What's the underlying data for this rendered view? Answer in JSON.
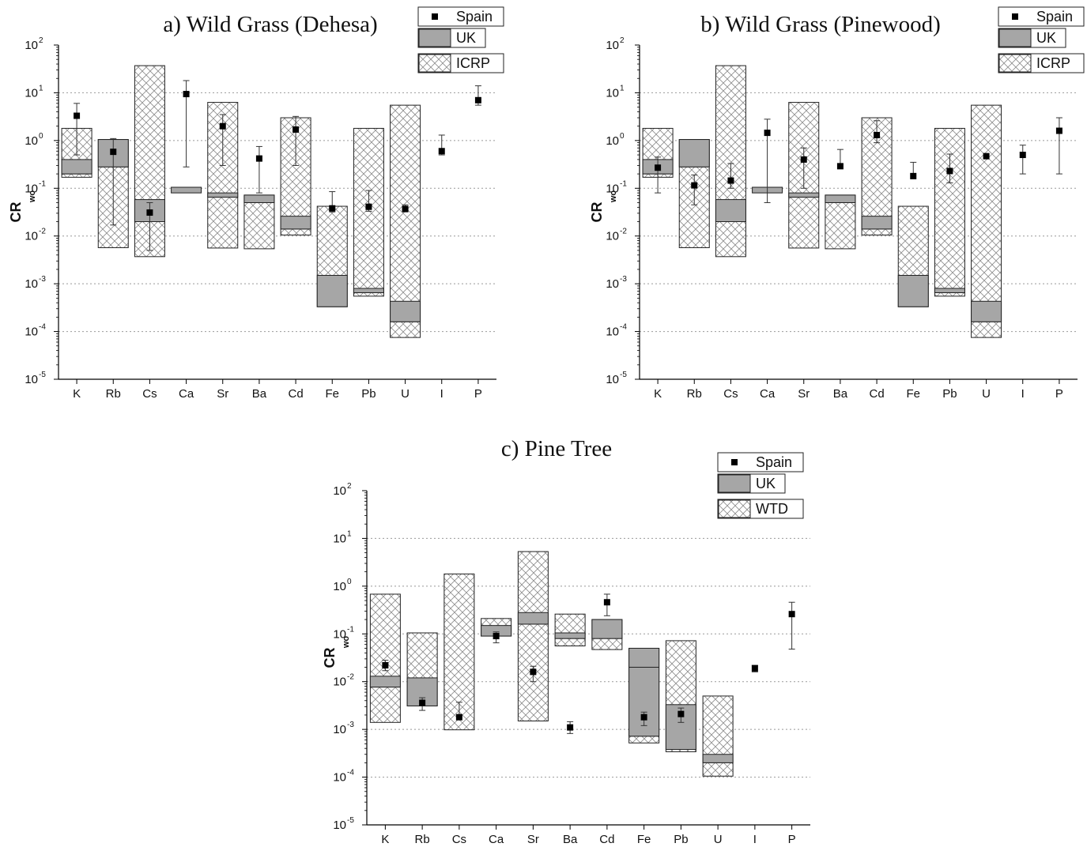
{
  "colors": {
    "uk_fill": "#a6a6a6",
    "hatch_fill": "#ffffff",
    "marker": "#000000",
    "grid": "#999999"
  },
  "chart_data": [
    {
      "type": "bar",
      "title": "a) Wild Grass (Dehesa)",
      "ylabel": "CR",
      "ylabel_sub": "wo",
      "yscale": "log",
      "ylim_exp": [
        -5,
        2
      ],
      "ytick_base": "10",
      "ytick_exponents": [
        "-5",
        "-4",
        "-3",
        "-2",
        "-1",
        "0",
        "1",
        "2"
      ],
      "grid": "horizontal dotted",
      "legend_position": "top-right",
      "categories": [
        "K",
        "Rb",
        "Cs",
        "Ca",
        "Sr",
        "Ba",
        "Cd",
        "Fe",
        "Pb",
        "U",
        "I",
        "P"
      ],
      "series": [
        {
          "name": "ICRP",
          "kind": "range_box",
          "ranges": [
            [
              0.17,
              1.8
            ],
            [
              0.0057,
              1.05
            ],
            [
              0.0037,
              37
            ],
            null,
            [
              0.0056,
              6.3
            ],
            [
              0.0054,
              0.072
            ],
            [
              0.0105,
              3.0
            ],
            [
              0.00033,
              0.042
            ],
            [
              0.00055,
              1.8
            ],
            [
              7.5e-05,
              5.5
            ],
            null,
            null
          ],
          "lines": [
            0.2,
            0.28,
            0.02,
            null,
            0.065,
            0.05,
            0.014,
            null,
            0.00065,
            0.00016,
            null,
            null
          ]
        },
        {
          "name": "UK",
          "kind": "range_box",
          "ranges": [
            [
              0.2,
              0.4
            ],
            [
              0.28,
              1.05
            ],
            [
              0.02,
              0.058
            ],
            [
              0.08,
              0.105
            ],
            [
              0.065,
              0.08
            ],
            [
              0.05,
              0.072
            ],
            [
              0.014,
              0.026
            ],
            [
              0.00033,
              0.0015
            ],
            [
              0.00065,
              0.0008
            ],
            [
              0.00016,
              0.00043
            ],
            null,
            null
          ]
        },
        {
          "name": "Spain",
          "kind": "point_error",
          "values": [
            3.3,
            0.58,
            0.031,
            9.4,
            2.0,
            0.42,
            1.7,
            0.038,
            0.041,
            0.037,
            0.6,
            7.0
          ],
          "err_low": [
            0.5,
            0.017,
            0.005,
            0.28,
            0.3,
            0.08,
            0.3,
            0.032,
            0.033,
            0.032,
            0.5,
            5.5
          ],
          "err_high": [
            6.0,
            1.1,
            0.05,
            18,
            3.5,
            0.75,
            3.2,
            0.085,
            0.09,
            0.045,
            1.3,
            14
          ]
        }
      ]
    },
    {
      "type": "bar",
      "title": "b) Wild Grass (Pinewood)",
      "ylabel": "CR",
      "ylabel_sub": "wo",
      "yscale": "log",
      "ylim_exp": [
        -5,
        2
      ],
      "ytick_base": "10",
      "ytick_exponents": [
        "-5",
        "-4",
        "-3",
        "-2",
        "-1",
        "0",
        "1",
        "2"
      ],
      "grid": "horizontal dotted",
      "legend_position": "top-right",
      "categories": [
        "K",
        "Rb",
        "Cs",
        "Ca",
        "Sr",
        "Ba",
        "Cd",
        "Fe",
        "Pb",
        "U",
        "I",
        "P"
      ],
      "series": [
        {
          "name": "ICRP",
          "kind": "range_box",
          "ranges": [
            [
              0.17,
              1.8
            ],
            [
              0.0057,
              1.05
            ],
            [
              0.0037,
              37
            ],
            null,
            [
              0.0056,
              6.3
            ],
            [
              0.0054,
              0.072
            ],
            [
              0.0105,
              3.0
            ],
            [
              0.00033,
              0.042
            ],
            [
              0.00055,
              1.8
            ],
            [
              7.5e-05,
              5.5
            ],
            null,
            null
          ],
          "lines": [
            0.2,
            0.28,
            0.02,
            null,
            0.065,
            0.05,
            0.014,
            null,
            0.00065,
            0.00016,
            null,
            null
          ]
        },
        {
          "name": "UK",
          "kind": "range_box",
          "ranges": [
            [
              0.2,
              0.4
            ],
            [
              0.28,
              1.05
            ],
            [
              0.02,
              0.058
            ],
            [
              0.08,
              0.105
            ],
            [
              0.065,
              0.08
            ],
            [
              0.05,
              0.072
            ],
            [
              0.014,
              0.026
            ],
            [
              0.00033,
              0.0015
            ],
            [
              0.00065,
              0.0008
            ],
            [
              0.00016,
              0.00043
            ],
            null,
            null
          ]
        },
        {
          "name": "Spain",
          "kind": "point_error",
          "values": [
            0.27,
            0.115,
            0.145,
            1.45,
            0.4,
            0.29,
            1.3,
            0.18,
            0.23,
            0.47,
            0.5,
            1.6
          ],
          "err_low": [
            0.08,
            0.045,
            0.1,
            0.05,
            0.1,
            null,
            0.9,
            null,
            0.13,
            null,
            0.2,
            0.2
          ],
          "err_high": [
            0.45,
            0.19,
            0.33,
            2.8,
            0.7,
            0.65,
            2.6,
            0.35,
            0.52,
            null,
            0.8,
            3.0
          ]
        }
      ]
    },
    {
      "type": "bar",
      "title": "c) Pine Tree",
      "ylabel": "CR",
      "ylabel_sub": "wo",
      "yscale": "log",
      "ylim_exp": [
        -5,
        2
      ],
      "ytick_base": "10",
      "ytick_exponents": [
        "-5",
        "-4",
        "-3",
        "-2",
        "-1",
        "0",
        "1",
        "2"
      ],
      "grid": "horizontal dotted",
      "legend_position": "top-right",
      "categories": [
        "K",
        "Rb",
        "Cs",
        "Ca",
        "Sr",
        "Ba",
        "Cd",
        "Fe",
        "Pb",
        "U",
        "I",
        "P"
      ],
      "series": [
        {
          "name": "WTD",
          "kind": "range_box",
          "ranges": [
            [
              0.0014,
              0.68
            ],
            [
              0.0031,
              0.105
            ],
            [
              0.00098,
              1.8
            ],
            [
              0.09,
              0.21
            ],
            [
              0.0015,
              5.3
            ],
            [
              0.056,
              0.26
            ],
            [
              0.047,
              0.2
            ],
            [
              0.00052,
              0.05
            ],
            [
              0.00034,
              0.072
            ],
            [
              0.000105,
              0.005
            ],
            null,
            null
          ],
          "lines": [
            0.0077,
            null,
            null,
            null,
            0.16,
            0.08,
            0.08,
            0.00072,
            0.00038,
            0.0002,
            null,
            null
          ]
        },
        {
          "name": "UK",
          "kind": "range_box",
          "ranges": [
            [
              0.0077,
              0.013
            ],
            [
              0.0031,
              0.012
            ],
            null,
            [
              0.09,
              0.15
            ],
            [
              0.16,
              0.28
            ],
            [
              0.08,
              0.105
            ],
            [
              0.08,
              0.2
            ],
            [
              0.00072,
              0.05
            ],
            [
              0.00038,
              0.0033
            ],
            [
              0.0002,
              0.0003
            ],
            null,
            null
          ],
          "lines": [
            null,
            null,
            null,
            null,
            null,
            null,
            null,
            0.02,
            null,
            null,
            null,
            null
          ]
        },
        {
          "name": "Spain",
          "kind": "point_error",
          "values": [
            0.022,
            0.0036,
            0.0018,
            0.09,
            0.016,
            0.0011,
            0.46,
            0.0018,
            0.0021,
            null,
            0.019,
            0.26
          ],
          "err_low": [
            0.017,
            0.0025,
            null,
            0.065,
            0.01,
            0.00082,
            0.24,
            0.0012,
            0.0014,
            null,
            0.016,
            0.048
          ],
          "err_high": [
            0.028,
            0.0046,
            0.0037,
            0.11,
            0.021,
            0.00145,
            0.68,
            0.0023,
            0.0028,
            null,
            0.022,
            0.46
          ]
        }
      ]
    }
  ]
}
